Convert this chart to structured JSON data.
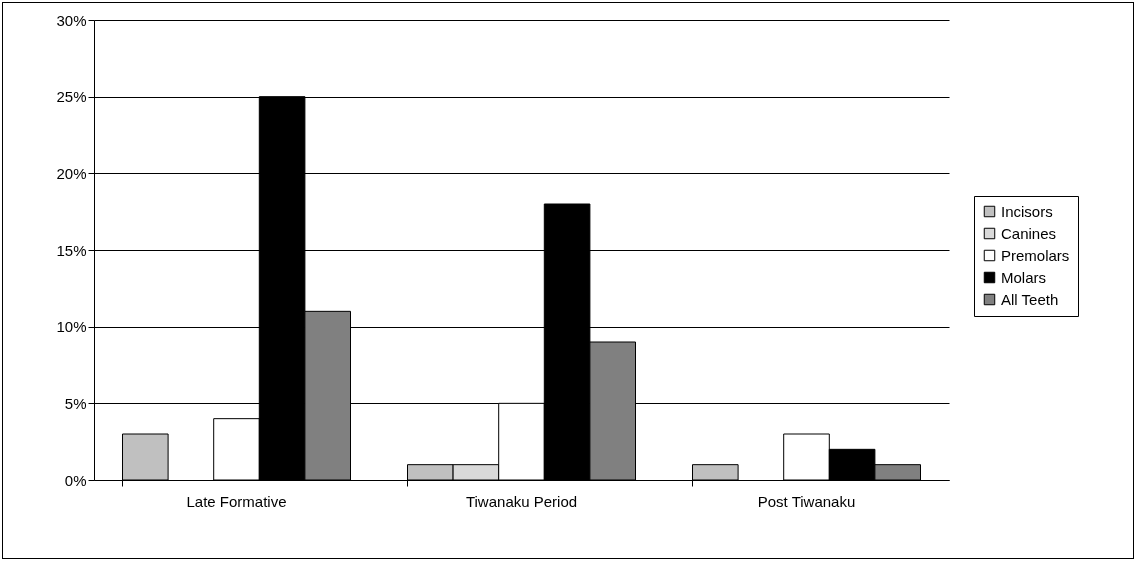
{
  "chart_data": {
    "type": "bar",
    "categories": [
      "Late Formative",
      "Tiwanaku Period",
      "Post Tiwanaku"
    ],
    "series": [
      {
        "name": "Incisors",
        "color": "#c0c0c0",
        "values": [
          3,
          1,
          1
        ]
      },
      {
        "name": "Canines",
        "color": "#d9d9d9",
        "values": [
          null,
          1,
          null
        ]
      },
      {
        "name": "Premolars",
        "color": "#ffffff",
        "values": [
          4,
          5,
          3
        ]
      },
      {
        "name": "Molars",
        "color": "#000000",
        "values": [
          25,
          18,
          2
        ]
      },
      {
        "name": "All Teeth",
        "color": "#808080",
        "values": [
          11,
          9,
          1
        ]
      }
    ],
    "ylim": [
      0,
      30
    ],
    "yticks": [
      {
        "value": 0,
        "label": "0%"
      },
      {
        "value": 5,
        "label": "5%"
      },
      {
        "value": 10,
        "label": "10%"
      },
      {
        "value": 15,
        "label": "15%"
      },
      {
        "value": 20,
        "label": "20%"
      },
      {
        "value": 25,
        "label": "25%"
      },
      {
        "value": 30,
        "label": "30%"
      }
    ],
    "grid": "y",
    "legend": "right"
  }
}
